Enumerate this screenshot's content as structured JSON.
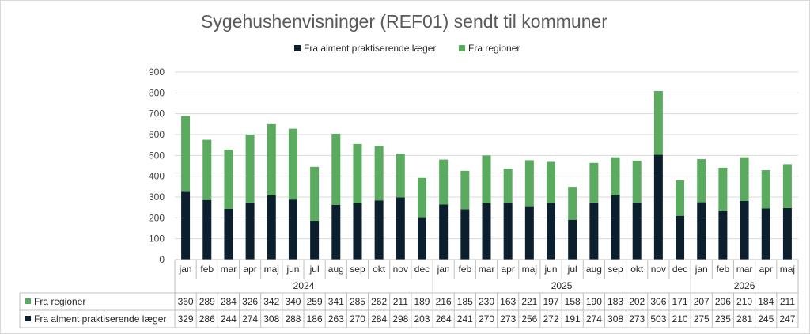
{
  "chart_data": {
    "type": "bar",
    "stacked": true,
    "title": "Sygehushenvisninger (REF01) sendt til kommuner",
    "categories": [
      "jan",
      "feb",
      "mar",
      "apr",
      "maj",
      "jun",
      "jul",
      "aug",
      "sep",
      "okt",
      "nov",
      "dec",
      "jan",
      "feb",
      "mar",
      "apr",
      "maj",
      "jun",
      "jul",
      "aug",
      "sep",
      "okt",
      "nov",
      "dec",
      "jan",
      "feb",
      "mar",
      "apr",
      "maj"
    ],
    "years": [
      {
        "label": "2024",
        "start": 0,
        "end": 11
      },
      {
        "label": "2025",
        "start": 12,
        "end": 23
      },
      {
        "label": "2026",
        "start": 24,
        "end": 28
      }
    ],
    "series": [
      {
        "name": "Fra alment praktiserende læger",
        "color": "#0b1f2e",
        "values": [
          329,
          286,
          244,
          274,
          308,
          288,
          186,
          263,
          270,
          284,
          298,
          203,
          264,
          241,
          270,
          273,
          256,
          272,
          191,
          274,
          308,
          273,
          503,
          210,
          275,
          235,
          281,
          245,
          247
        ]
      },
      {
        "name": "Fra regioner",
        "color": "#5aaa5f",
        "values": [
          360,
          289,
          284,
          326,
          342,
          340,
          259,
          341,
          285,
          262,
          211,
          189,
          216,
          185,
          230,
          163,
          221,
          197,
          158,
          190,
          183,
          202,
          306,
          171,
          207,
          206,
          210,
          184,
          211
        ]
      }
    ],
    "ylim": [
      0,
      900
    ],
    "yticks": [
      0,
      100,
      200,
      300,
      400,
      500,
      600,
      700,
      800,
      900
    ],
    "grid": true,
    "legend": "top-center",
    "data_table": true
  }
}
